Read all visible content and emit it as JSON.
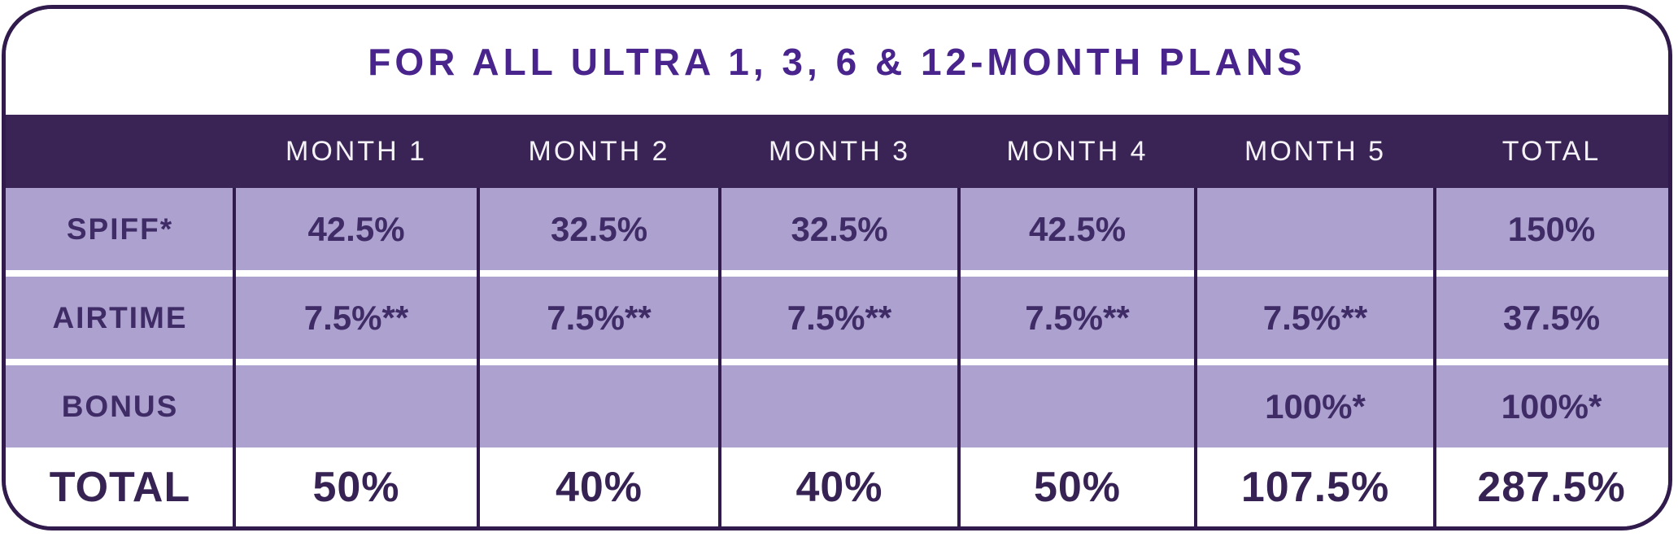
{
  "title": "FOR ALL ULTRA 1, 3, 6 & 12-MONTH PLANS",
  "colors": {
    "brand_purple": "#48248C",
    "header_background": "#3A2355",
    "border_and_lines": "#311B4D",
    "cell_background": "#ACA1CF",
    "cell_text": "#3F2C66",
    "total_text": "#372254",
    "white": "#FFFFFF"
  },
  "table": {
    "headers": [
      "",
      "MONTH 1",
      "MONTH 2",
      "MONTH 3",
      "MONTH 4",
      "MONTH 5",
      "TOTAL"
    ],
    "rows": [
      {
        "label": "SPIFF*",
        "values": [
          "42.5%",
          "32.5%",
          "32.5%",
          "42.5%",
          "",
          "150%"
        ]
      },
      {
        "label": "AIRTIME",
        "values": [
          "7.5%**",
          "7.5%**",
          "7.5%**",
          "7.5%**",
          "7.5%**",
          "37.5%"
        ]
      },
      {
        "label": "BONUS",
        "values": [
          "",
          "",
          "",
          "",
          "100%*",
          "100%*"
        ]
      }
    ],
    "total_row": {
      "label": "TOTAL",
      "values": [
        "50%",
        "40%",
        "40%",
        "50%",
        "107.5%",
        "287.5%"
      ]
    }
  },
  "chart_data": {
    "type": "table",
    "title": "FOR ALL ULTRA 1, 3, 6 & 12-MONTH PLANS",
    "columns": [
      "",
      "MONTH 1",
      "MONTH 2",
      "MONTH 3",
      "MONTH 4",
      "MONTH 5",
      "TOTAL"
    ],
    "rows": [
      [
        "SPIFF*",
        "42.5%",
        "32.5%",
        "32.5%",
        "42.5%",
        "",
        "150%"
      ],
      [
        "AIRTIME",
        "7.5%**",
        "7.5%**",
        "7.5%**",
        "7.5%**",
        "7.5%**",
        "37.5%"
      ],
      [
        "BONUS",
        "",
        "",
        "",
        "",
        "100%*",
        "100%*"
      ],
      [
        "TOTAL",
        "50%",
        "40%",
        "40%",
        "50%",
        "107.5%",
        "287.5%"
      ]
    ],
    "notes_markers": [
      "*",
      "**"
    ]
  }
}
